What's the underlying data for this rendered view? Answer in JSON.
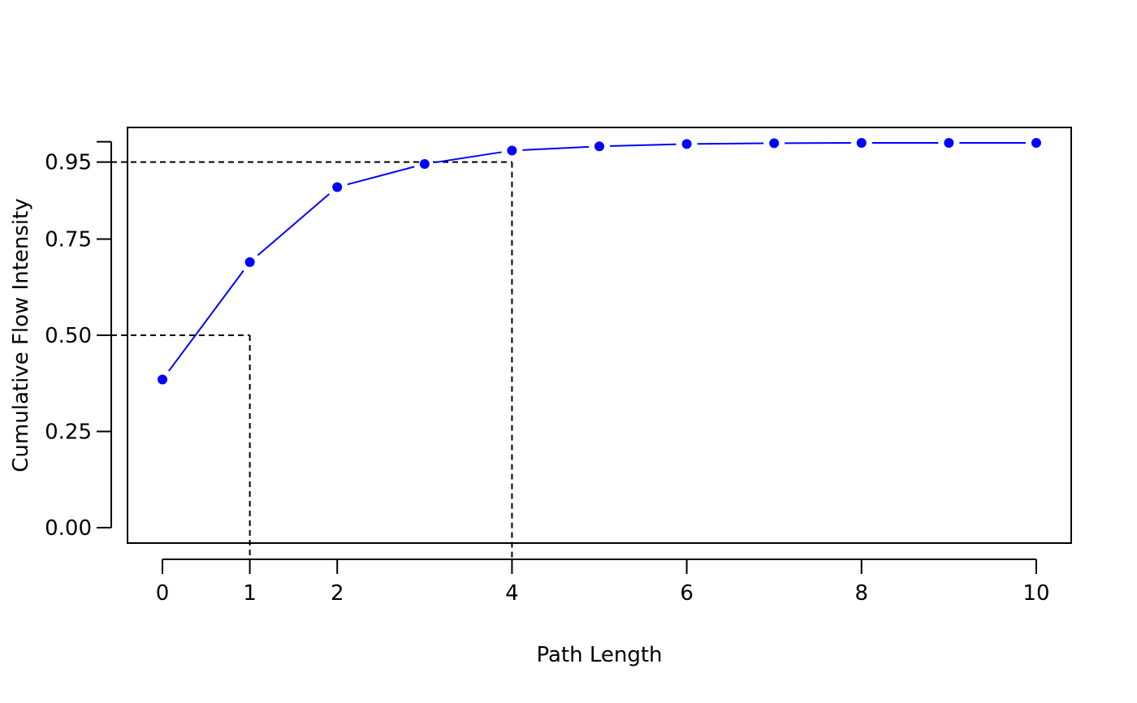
{
  "chart_data": {
    "type": "line",
    "xlabel": "Path Length",
    "ylabel": "Cumulative Flow Intensity",
    "xlim": [
      -0.4,
      10.4
    ],
    "ylim": [
      -0.04,
      1.04
    ],
    "x_ticks": [
      0,
      1,
      2,
      4,
      6,
      8,
      10
    ],
    "y_ticks": [
      0.0,
      0.25,
      0.5,
      0.75,
      0.95
    ],
    "x_tick_labels": [
      "0",
      "1",
      "2",
      "4",
      "6",
      "8",
      "10"
    ],
    "y_tick_labels": [
      "0.00",
      "0.25",
      "0.50",
      "0.75",
      "0.95"
    ],
    "series": [
      {
        "color": "#0000ff",
        "x": [
          0,
          1,
          2,
          3,
          4,
          5,
          6,
          7,
          8,
          9,
          10
        ],
        "y": [
          0.385,
          0.69,
          0.885,
          0.945,
          0.98,
          0.991,
          0.997,
          0.999,
          1.0,
          1.0,
          1.0
        ]
      }
    ],
    "reference_lines": [
      {
        "x": 1,
        "y": 0.5,
        "style": "dashed"
      },
      {
        "x": 4,
        "y": 0.95,
        "style": "dashed"
      }
    ],
    "grid": false,
    "legend": "none"
  }
}
